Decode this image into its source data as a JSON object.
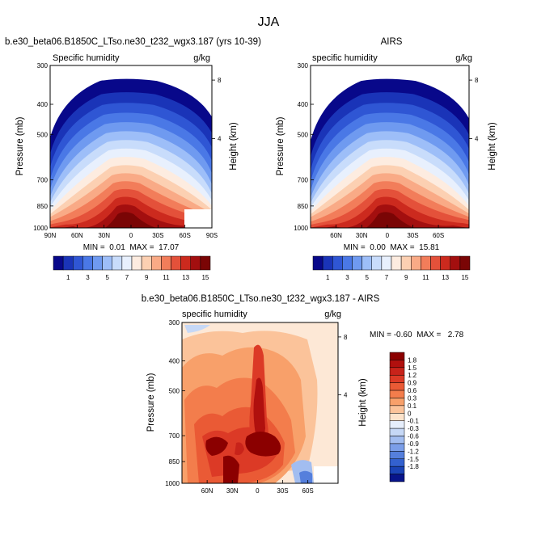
{
  "figure": {
    "title": "JJA",
    "panel_a": {
      "title": "b.e30_beta06.B1850C_LTso.ne30_t232_wgx3.187 (yrs 10-39)",
      "left_label": "Specific humidity",
      "right_label": "g/kg",
      "ylabel": "Pressure (mb)",
      "ylabel_right": "Height (km)",
      "minmax": "MIN =  0.01  MAX =  17.07"
    },
    "panel_b": {
      "title": "AIRS",
      "left_label": "specific humidity",
      "right_label": "g/kg",
      "ylabel": "Pressure (mb)",
      "ylabel_right": "Height (km)",
      "minmax": "MIN =  0.00  MAX =  15.81"
    },
    "panel_c": {
      "title": "b.e30_beta06.B1850C_LTso.ne30_t232_wgx3.187 - AIRS",
      "left_label": "specific humidity",
      "right_label": "g/kg",
      "ylabel": "Pressure (mb)",
      "ylabel_right": "Height (km)",
      "minmax": "MIN = -0.60  MAX =   2.78"
    }
  },
  "chart_data": [
    {
      "type": "heatmap",
      "title": "b.e30_beta06.B1850C_LTso.ne30_t232_wgx3.187 (yrs 10-39)",
      "ylabel": "Pressure (mb)",
      "ylabel_right": "Height (km)",
      "units": "g/kg",
      "x_ticks": [
        "90N",
        "60N",
        "30N",
        "0",
        "30S",
        "60S",
        "90S"
      ],
      "y_ticks": [
        300,
        400,
        500,
        700,
        850,
        1000
      ],
      "y_right_ticks": [
        8,
        4
      ],
      "min": 0.01,
      "max": 17.07,
      "colorbar_labels": [
        "1",
        "3",
        "5",
        "7",
        "9",
        "11",
        "13",
        "15"
      ],
      "colors": [
        "#08088a",
        "#1a34b8",
        "#2f56d4",
        "#4a78e6",
        "#6f9af0",
        "#9dbef8",
        "#c8dcfb",
        "#e8f0fd",
        "#fdece0",
        "#fcd0b2",
        "#f9aa86",
        "#f27d5a",
        "#e4513a",
        "#cc2a1e",
        "#a30f0f",
        "#7a0505"
      ]
    },
    {
      "type": "heatmap",
      "title": "AIRS",
      "ylabel": "Pressure (mb)",
      "ylabel_right": "Height (km)",
      "units": "g/kg",
      "x_ticks": [
        "60N",
        "30N",
        "0",
        "30S",
        "60S"
      ],
      "y_ticks": [
        300,
        400,
        500,
        700,
        850,
        1000
      ],
      "y_right_ticks": [
        8,
        4
      ],
      "min": 0.0,
      "max": 15.81,
      "colorbar_labels": [
        "1",
        "3",
        "5",
        "7",
        "9",
        "11",
        "13",
        "15"
      ],
      "colors": [
        "#08088a",
        "#1a34b8",
        "#2f56d4",
        "#4a78e6",
        "#6f9af0",
        "#9dbef8",
        "#c8dcfb",
        "#e8f0fd",
        "#fdece0",
        "#fcd0b2",
        "#f9aa86",
        "#f27d5a",
        "#e4513a",
        "#cc2a1e",
        "#a30f0f",
        "#7a0505"
      ]
    },
    {
      "type": "heatmap",
      "title": "b.e30_beta06.B1850C_LTso.ne30_t232_wgx3.187 - AIRS",
      "ylabel": "Pressure (mb)",
      "ylabel_right": "Height (km)",
      "units": "g/kg",
      "x_ticks": [
        "60N",
        "30N",
        "0",
        "30S",
        "60S"
      ],
      "y_ticks": [
        300,
        400,
        500,
        700,
        850,
        1000
      ],
      "y_right_ticks": [
        8,
        4
      ],
      "min": -0.6,
      "max": 2.78,
      "colorbar_labels": [
        "1.8",
        "1.5",
        "1.2",
        "0.9",
        "0.6",
        "0.3",
        "0.1",
        "0",
        "-0.1",
        "-0.3",
        "-0.6",
        "-0.9",
        "-1.2",
        "-1.5",
        "-1.8"
      ],
      "colors": [
        "#8b0000",
        "#b0100e",
        "#c8231a",
        "#dc3a26",
        "#ea5a35",
        "#f37d4c",
        "#f8a06a",
        "#fbc39a",
        "#fde3cb",
        "#e6eefb",
        "#c6d8f6",
        "#a2bdf0",
        "#7b9ee8",
        "#557fdc",
        "#3361cf",
        "#1a43b6",
        "#07148a"
      ]
    }
  ]
}
